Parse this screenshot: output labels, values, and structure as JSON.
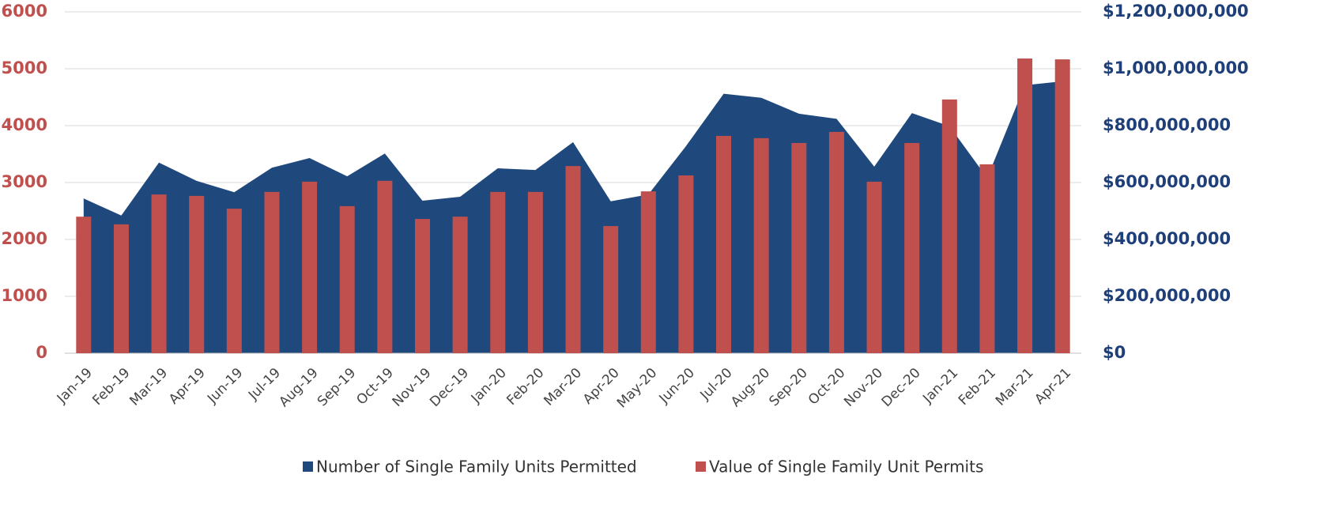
{
  "chart_data": {
    "type": "bar_area",
    "categories": [
      "Jan-19",
      "Feb-19",
      "Mar-19",
      "Apr-19",
      "Jun-19",
      "Jul-19",
      "Aug-19",
      "Sep-19",
      "Oct-19",
      "Nov-19",
      "Dec-19",
      "Jan-20",
      "Feb-20",
      "Mar-20",
      "Apr-20",
      "May-20",
      "Jun-20",
      "Jul-20",
      "Aug-20",
      "Sep-20",
      "Oct-20",
      "Nov-20",
      "Dec-20",
      "Jan-21",
      "Feb-21",
      "Mar-21",
      "Apr-21"
    ],
    "series": [
      {
        "name": "Number of Single Family Units Permitted",
        "type": "area",
        "color": "#1f497d",
        "values": [
          2720,
          2420,
          3350,
          3030,
          2830,
          3260,
          3430,
          3110,
          3510,
          2680,
          2750,
          3250,
          3220,
          3710,
          2670,
          2790,
          3640,
          4560,
          4490,
          4210,
          4120,
          3280,
          4220,
          3990,
          3080,
          4710,
          4780
        ]
      },
      {
        "name": "Value of Single Family Unit Permits",
        "type": "bar",
        "color": "#c0504d",
        "axis": "y2",
        "values": [
          480000000,
          453000000,
          558000000,
          553000000,
          508000000,
          567000000,
          603000000,
          517000000,
          606000000,
          472000000,
          480000000,
          567000000,
          567000000,
          658000000,
          447000000,
          569000000,
          625000000,
          764000000,
          756000000,
          739000000,
          778000000,
          603000000,
          739000000,
          892000000,
          664000000,
          1036000000,
          1033000000
        ]
      }
    ],
    "ylim": [
      0,
      6000
    ],
    "yticks": [
      0,
      1000,
      2000,
      3000,
      4000,
      5000,
      6000
    ],
    "y2lim": [
      0,
      1200000000
    ],
    "y2ticks": [
      {
        "value": 0,
        "label": "$0"
      },
      {
        "value": 200000000,
        "label": "$200,000,000"
      },
      {
        "value": 400000000,
        "label": "$400,000,000"
      },
      {
        "value": 600000000,
        "label": "$600,000,000"
      },
      {
        "value": 800000000,
        "label": "$800,000,000"
      },
      {
        "value": 1000000000,
        "label": "$1,000,000,000"
      },
      {
        "value": 1200000000,
        "label": "$1,200,000,000"
      }
    ],
    "grid": true,
    "legend": "bottom"
  }
}
